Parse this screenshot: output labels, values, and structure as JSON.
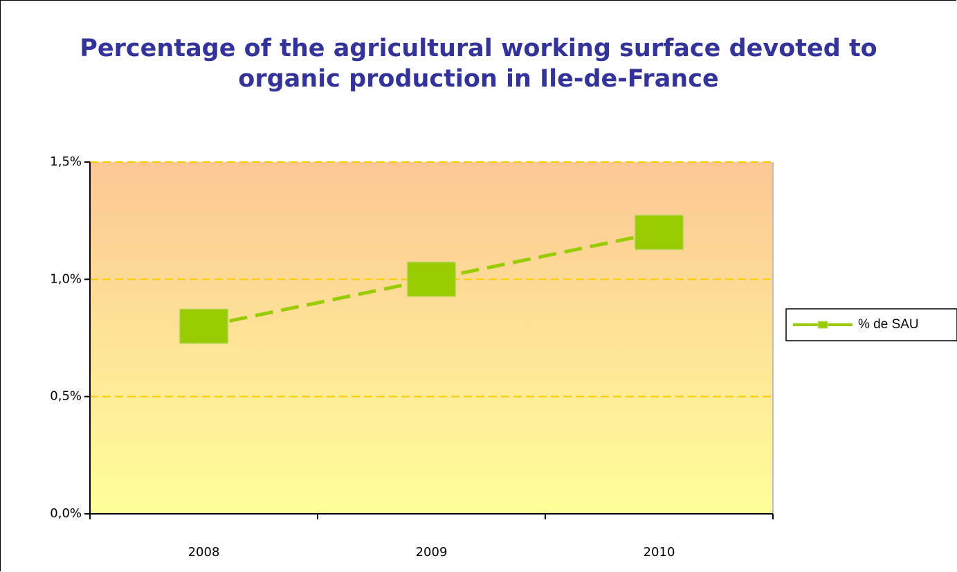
{
  "chart_data": {
    "type": "line",
    "title": "Percentage of the agricultural working surface devoted to organic production in Ile-de-France",
    "categories": [
      "2008",
      "2009",
      "2010"
    ],
    "series": [
      {
        "name": "% de SAU",
        "color": "#99cc00",
        "values": [
          0.8,
          1.0,
          1.2
        ]
      }
    ],
    "ylim": [
      0,
      1.5
    ],
    "yticks": [
      {
        "value": 0,
        "label": "0,0%"
      },
      {
        "value": 0.5,
        "label": "0,5%"
      },
      {
        "value": 1.0,
        "label": "1,0%"
      },
      {
        "value": 1.5,
        "label": "1,5%"
      }
    ],
    "grid": true,
    "legend": "right"
  }
}
